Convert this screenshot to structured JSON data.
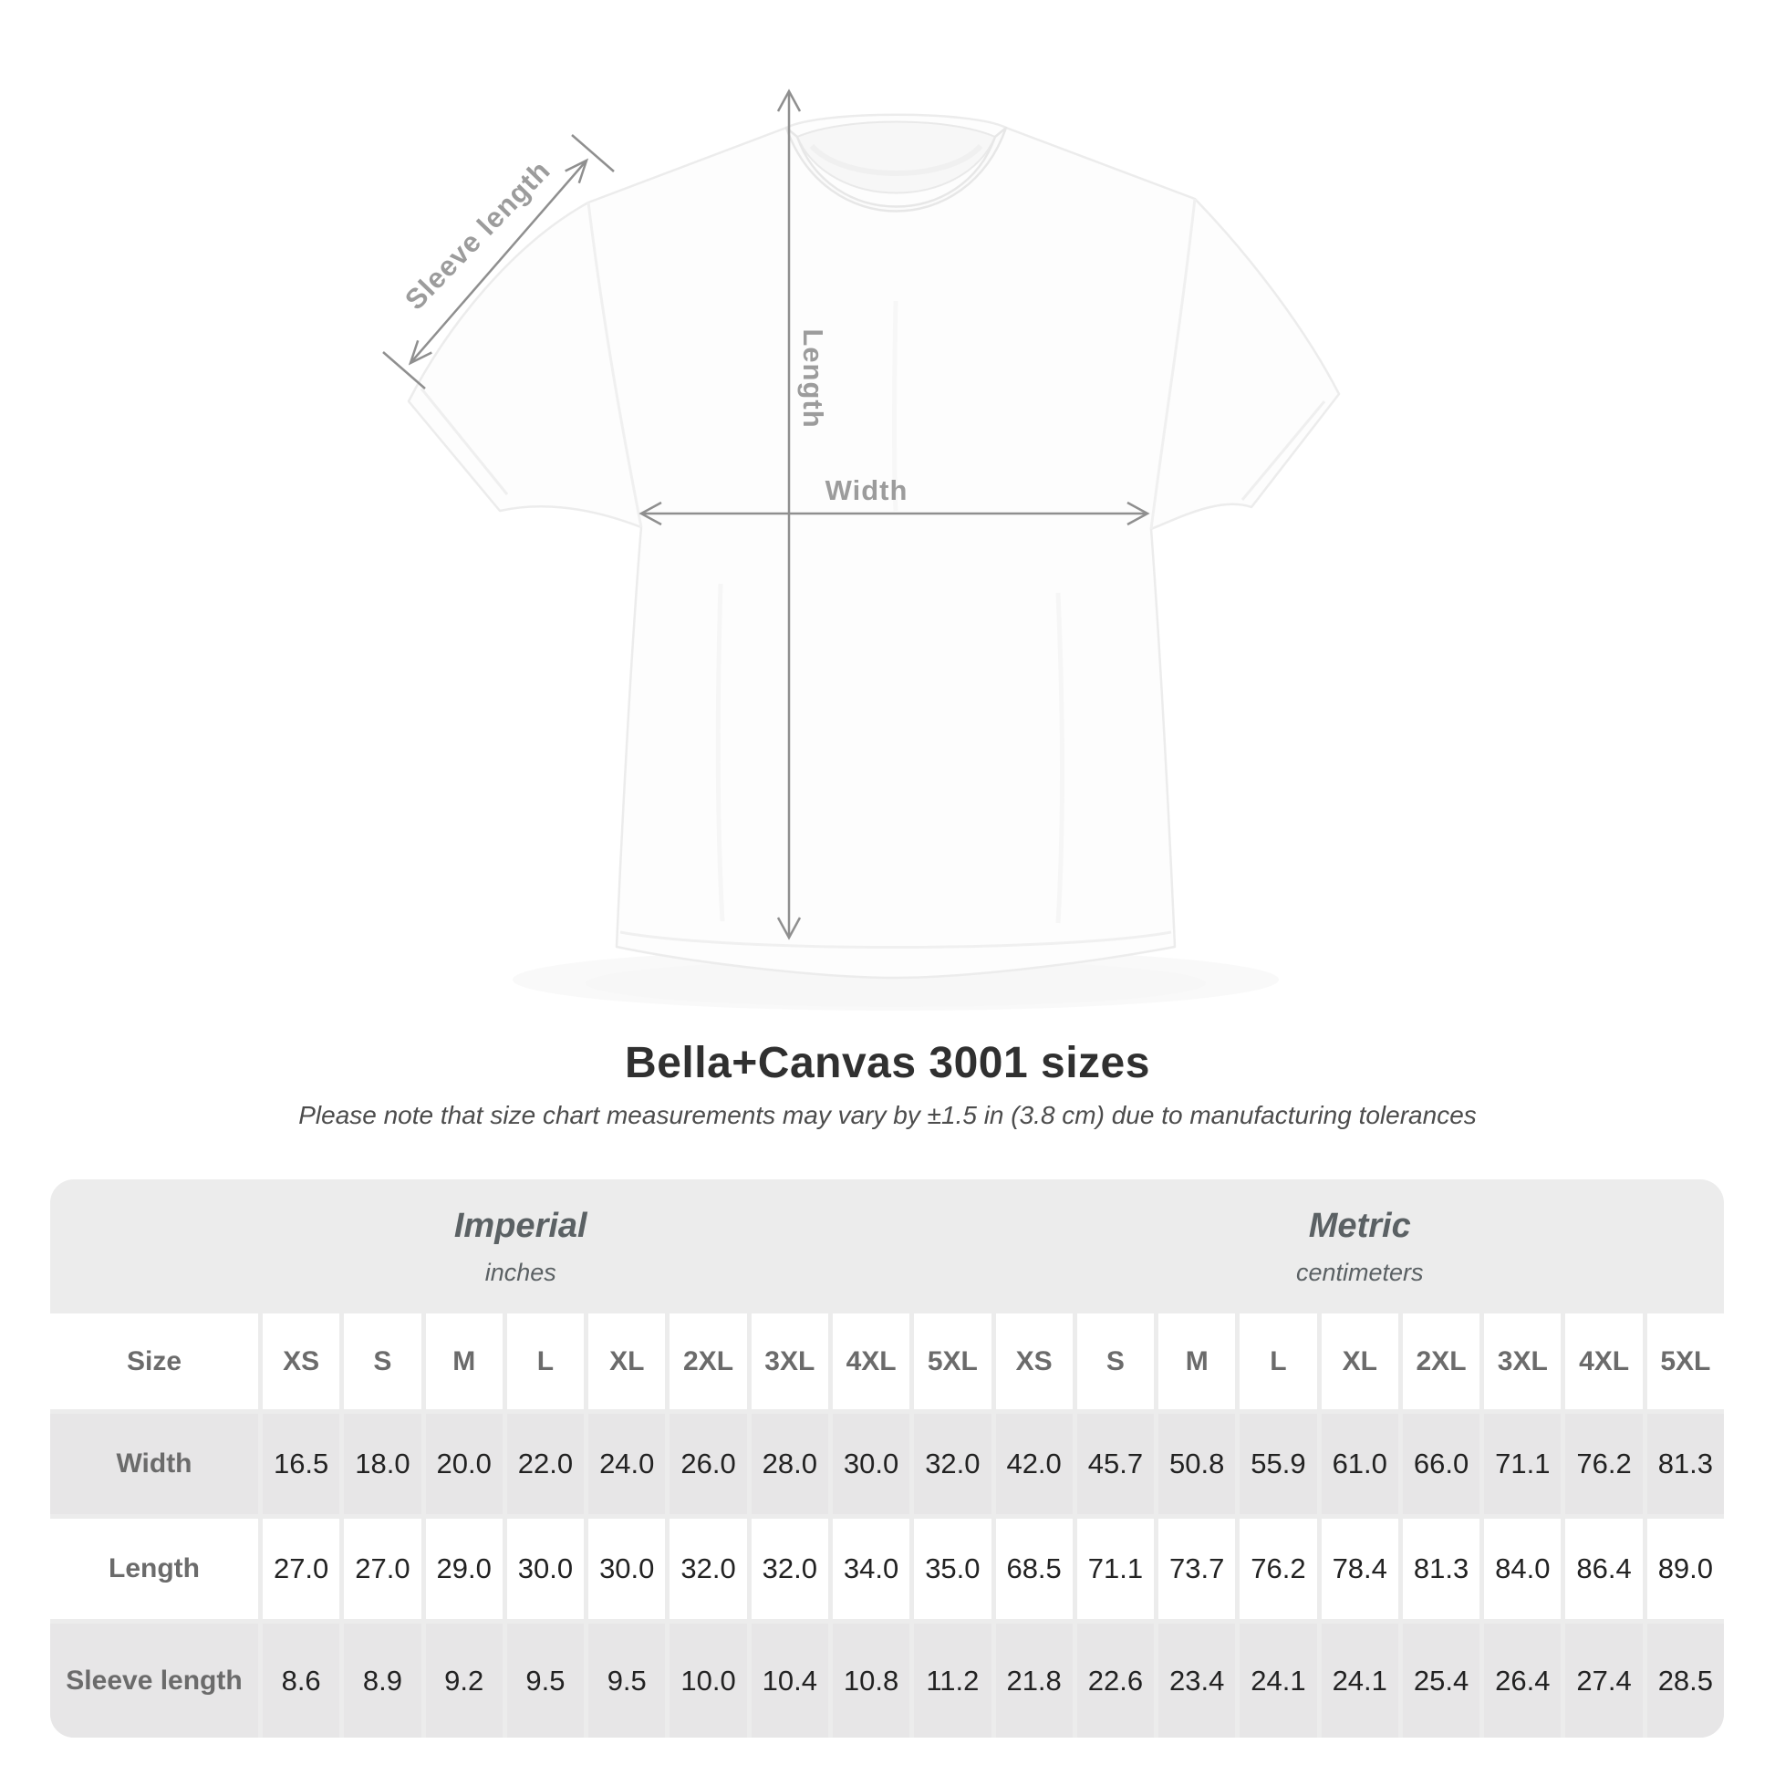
{
  "diagram": {
    "labels": {
      "sleeve_length": "Sleeve length",
      "length": "Length",
      "width": "Width"
    },
    "arrow_color": "#8f8f8f",
    "label_color": "#9c9c9c"
  },
  "title": "Bella+Canvas 3001 sizes",
  "subtitle": "Please note that size chart measurements may vary by ±1.5 in (3.8 cm) due to manufacturing tolerances",
  "table": {
    "corner_label": "Size",
    "groups": [
      {
        "label": "Imperial",
        "unit": "inches"
      },
      {
        "label": "Metric",
        "unit": "centimeters"
      }
    ],
    "size_headers": [
      "XS",
      "S",
      "M",
      "L",
      "XL",
      "2XL",
      "3XL",
      "4XL",
      "5XL"
    ],
    "rows": [
      {
        "label": "Width",
        "imperial": [
          "16.5",
          "18.0",
          "20.0",
          "22.0",
          "24.0",
          "26.0",
          "28.0",
          "30.0",
          "32.0"
        ],
        "metric": [
          "42.0",
          "45.7",
          "50.8",
          "55.9",
          "61.0",
          "66.0",
          "71.1",
          "76.2",
          "81.3"
        ]
      },
      {
        "label": "Length",
        "imperial": [
          "27.0",
          "27.0",
          "29.0",
          "30.0",
          "30.0",
          "32.0",
          "32.0",
          "34.0",
          "35.0"
        ],
        "metric": [
          "68.5",
          "71.1",
          "73.7",
          "76.2",
          "78.4",
          "81.3",
          "84.0",
          "86.4",
          "89.0"
        ]
      },
      {
        "label": "Sleeve length",
        "imperial": [
          "8.6",
          "8.9",
          "9.2",
          "9.5",
          "9.5",
          "10.0",
          "10.4",
          "10.8",
          "11.2"
        ],
        "metric": [
          "21.8",
          "22.6",
          "23.4",
          "24.1",
          "24.1",
          "25.4",
          "26.4",
          "27.4",
          "28.5"
        ]
      }
    ],
    "colors": {
      "container_bg": "#ececec",
      "white_row": "#ffffff",
      "gray_row": "#e7e6e7",
      "header_text": "#6b6b6b",
      "value_text": "#222222",
      "group_text": "#5b6164"
    }
  },
  "chart_data": {
    "type": "table",
    "title": "Bella+Canvas 3001 sizes",
    "note": "Please note that size chart measurements may vary by ±1.5 in (3.8 cm) due to manufacturing tolerances",
    "categories": [
      "XS",
      "S",
      "M",
      "L",
      "XL",
      "2XL",
      "3XL",
      "4XL",
      "5XL"
    ],
    "series": [
      {
        "name": "Width (inches)",
        "values": [
          16.5,
          18.0,
          20.0,
          22.0,
          24.0,
          26.0,
          28.0,
          30.0,
          32.0
        ]
      },
      {
        "name": "Length (inches)",
        "values": [
          27.0,
          27.0,
          29.0,
          30.0,
          30.0,
          32.0,
          32.0,
          34.0,
          35.0
        ]
      },
      {
        "name": "Sleeve length (inches)",
        "values": [
          8.6,
          8.9,
          9.2,
          9.5,
          9.5,
          10.0,
          10.4,
          10.8,
          11.2
        ]
      },
      {
        "name": "Width (centimeters)",
        "values": [
          42.0,
          45.7,
          50.8,
          55.9,
          61.0,
          66.0,
          71.1,
          76.2,
          81.3
        ]
      },
      {
        "name": "Length (centimeters)",
        "values": [
          68.5,
          71.1,
          73.7,
          76.2,
          78.4,
          81.3,
          84.0,
          86.4,
          89.0
        ]
      },
      {
        "name": "Sleeve length (centimeters)",
        "values": [
          21.8,
          22.6,
          23.4,
          24.1,
          24.1,
          25.4,
          26.4,
          27.4,
          28.5
        ]
      }
    ]
  }
}
